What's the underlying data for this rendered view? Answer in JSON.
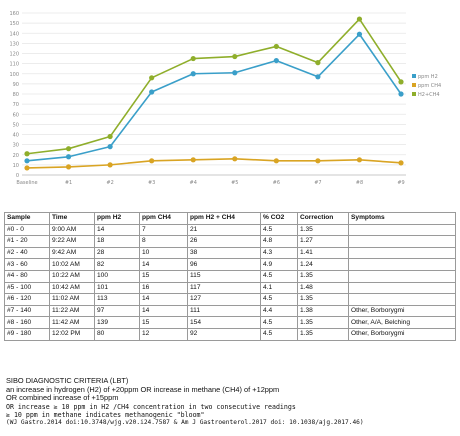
{
  "chart_data": {
    "type": "line",
    "x": [
      "Baseline",
      "#1",
      "#2",
      "#3",
      "#4",
      "#5",
      "#6",
      "#7",
      "#8",
      "#9"
    ],
    "series": [
      {
        "name": "ppm H2",
        "color": "#3a9fc9",
        "values": [
          14,
          18,
          28,
          82,
          100,
          101,
          113,
          97,
          139,
          80
        ]
      },
      {
        "name": "ppm CH4",
        "color": "#d9a423",
        "values": [
          7,
          8,
          10,
          14,
          15,
          16,
          14,
          14,
          15,
          12
        ]
      },
      {
        "name": "H2+CH4",
        "color": "#8fae2b",
        "values": [
          21,
          26,
          38,
          96,
          115,
          117,
          127,
          111,
          154,
          92
        ]
      }
    ],
    "yticks": [
      "0",
      "10",
      "20",
      "30",
      "40",
      "50",
      "60",
      "70",
      "80",
      "90",
      "100",
      "110",
      "120",
      "130",
      "140",
      "150",
      "160"
    ],
    "ylim": [
      0,
      160
    ],
    "grid": true,
    "legend_position": "right"
  },
  "table": {
    "headers": [
      "Sample",
      "Time",
      "ppm H2",
      "ppm CH4",
      "ppm H2 + CH4",
      "% CO2",
      "Correction",
      "Symptoms"
    ],
    "rows": [
      [
        "#0 - 0",
        "9:00 AM",
        "14",
        "7",
        "21",
        "4.5",
        "1.35",
        ""
      ],
      [
        "#1 - 20",
        "9:22 AM",
        "18",
        "8",
        "26",
        "4.8",
        "1.27",
        ""
      ],
      [
        "#2 - 40",
        "9:42 AM",
        "28",
        "10",
        "38",
        "4.3",
        "1.41",
        ""
      ],
      [
        "#3 - 60",
        "10:02 AM",
        "82",
        "14",
        "96",
        "4.9",
        "1.24",
        ""
      ],
      [
        "#4 - 80",
        "10:22 AM",
        "100",
        "15",
        "115",
        "4.5",
        "1.35",
        ""
      ],
      [
        "#5 - 100",
        "10:42 AM",
        "101",
        "16",
        "117",
        "4.1",
        "1.48",
        ""
      ],
      [
        "#6 - 120",
        "11:02 AM",
        "113",
        "14",
        "127",
        "4.5",
        "1.35",
        ""
      ],
      [
        "#7 - 140",
        "11:22 AM",
        "97",
        "14",
        "111",
        "4.4",
        "1.38",
        "Other, Borborygmi"
      ],
      [
        "#8 - 160",
        "11:42 AM",
        "139",
        "15",
        "154",
        "4.5",
        "1.35",
        "Other, A/A, Belching"
      ],
      [
        "#9 - 180",
        "12:02 PM",
        "80",
        "12",
        "92",
        "4.5",
        "1.35",
        "Other, Borborygmi"
      ]
    ]
  },
  "criteria": {
    "title": "SIBO DIAGNOSTIC CRITERIA (LBT)",
    "line1": "an increase in hydrogen (H2) of +20ppm OR increase in methane (CH4) of +12ppm",
    "line2": "OR combined increase of +15ppm",
    "line3": "OR increase ≥ 10 ppm in H2 /CH4 concentration in two consecutive readings",
    "line4": "≥ 10 ppm in methane indicates methanogenic \"bloom\"",
    "line5": "(WJ Gastro.2014 doi:10.3748/wjg.v20.i24.7587 & Am J Gastroenterol.2017 doi: 10.1038/ajg.2017.46)"
  }
}
